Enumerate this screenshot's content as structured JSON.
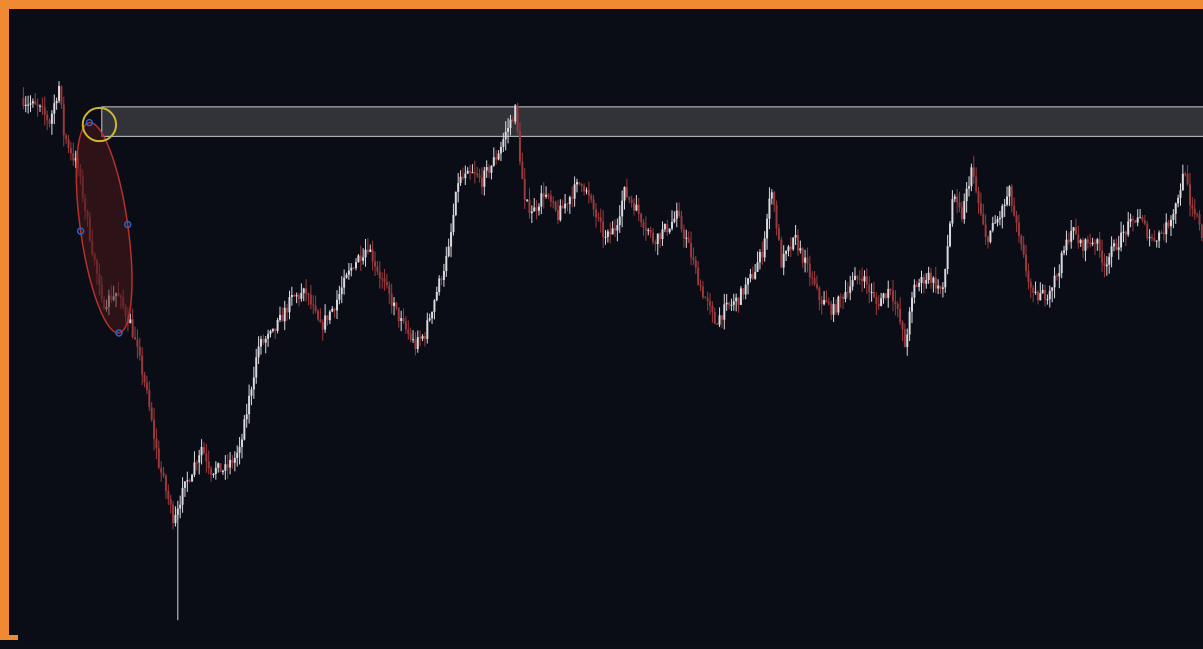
{
  "colors": {
    "frame": "#f08a32",
    "background": "#0a0d16",
    "up_candle": "#d9d9de",
    "down_candle": "#9b3a3c",
    "zone_fill": "#3a3b40",
    "zone_stroke": "#c9c9cf",
    "ellipse_stroke": "#b4312c",
    "ellipse_fill": "#4a1a1c",
    "circle_stroke": "#d0b62a",
    "handle": "#2f5fd0"
  },
  "chart_data": {
    "type": "candlestick",
    "title": "",
    "xlabel": "",
    "ylabel": "",
    "grid": false,
    "legend": "none",
    "ylim": [
      0,
      100
    ],
    "close_path": [
      [
        0,
        90
      ],
      [
        4,
        88
      ],
      [
        6,
        86
      ],
      [
        8,
        92
      ],
      [
        9,
        84
      ],
      [
        12,
        78
      ],
      [
        16,
        60
      ],
      [
        17,
        55
      ],
      [
        20,
        57
      ],
      [
        23,
        52
      ],
      [
        26,
        42
      ],
      [
        29,
        28
      ],
      [
        32,
        19
      ],
      [
        35,
        25
      ],
      [
        38,
        31
      ],
      [
        40,
        27
      ],
      [
        43,
        27
      ],
      [
        46,
        30
      ],
      [
        50,
        48
      ],
      [
        53,
        50
      ],
      [
        57,
        56
      ],
      [
        60,
        57
      ],
      [
        63,
        51
      ],
      [
        66,
        55
      ],
      [
        70,
        62
      ],
      [
        73,
        65
      ],
      [
        76,
        59
      ],
      [
        80,
        52
      ],
      [
        83,
        48
      ],
      [
        85,
        50
      ],
      [
        87,
        56
      ],
      [
        90,
        64
      ],
      [
        92,
        76
      ],
      [
        95,
        77
      ],
      [
        97,
        76
      ],
      [
        100,
        80
      ],
      [
        103,
        86
      ],
      [
        104,
        88
      ],
      [
        106,
        72
      ],
      [
        108,
        71
      ],
      [
        110,
        74
      ],
      [
        113,
        70
      ],
      [
        116,
        74
      ],
      [
        118,
        76
      ],
      [
        121,
        70
      ],
      [
        123,
        66
      ],
      [
        125,
        68
      ],
      [
        127,
        74
      ],
      [
        129,
        72
      ],
      [
        133,
        66
      ],
      [
        136,
        68
      ],
      [
        138,
        70
      ],
      [
        140,
        66
      ],
      [
        143,
        58
      ],
      [
        146,
        52
      ],
      [
        148,
        54
      ],
      [
        151,
        56
      ],
      [
        154,
        60
      ],
      [
        156,
        64
      ],
      [
        158,
        75
      ],
      [
        160,
        62
      ],
      [
        163,
        66
      ],
      [
        165,
        62
      ],
      [
        168,
        56
      ],
      [
        171,
        54
      ],
      [
        174,
        58
      ],
      [
        177,
        60
      ],
      [
        180,
        55
      ],
      [
        183,
        58
      ],
      [
        185,
        52
      ],
      [
        186,
        48
      ],
      [
        188,
        58
      ],
      [
        191,
        60
      ],
      [
        194,
        57
      ],
      [
        196,
        73
      ],
      [
        198,
        70
      ],
      [
        200,
        78
      ],
      [
        203,
        66
      ],
      [
        206,
        70
      ],
      [
        208,
        74
      ],
      [
        210,
        66
      ],
      [
        213,
        56
      ],
      [
        216,
        57
      ],
      [
        218,
        60
      ],
      [
        221,
        68
      ],
      [
        223,
        65
      ],
      [
        226,
        66
      ],
      [
        228,
        62
      ],
      [
        232,
        67
      ],
      [
        235,
        70
      ],
      [
        238,
        66
      ],
      [
        241,
        68
      ],
      [
        243,
        72
      ],
      [
        245,
        78
      ],
      [
        246,
        71
      ],
      [
        248,
        69
      ],
      [
        250,
        60
      ]
    ],
    "annotations": [
      {
        "type": "horizontal-zone",
        "y_top": 88.5,
        "y_bottom": 83.5,
        "x_start": 17
      },
      {
        "type": "ellipse",
        "cx": 17.5,
        "cy": 68,
        "rx": 5,
        "ry": 18
      },
      {
        "type": "circle",
        "cx": 16.5,
        "cy": 85.5,
        "r": 3.5
      }
    ]
  }
}
